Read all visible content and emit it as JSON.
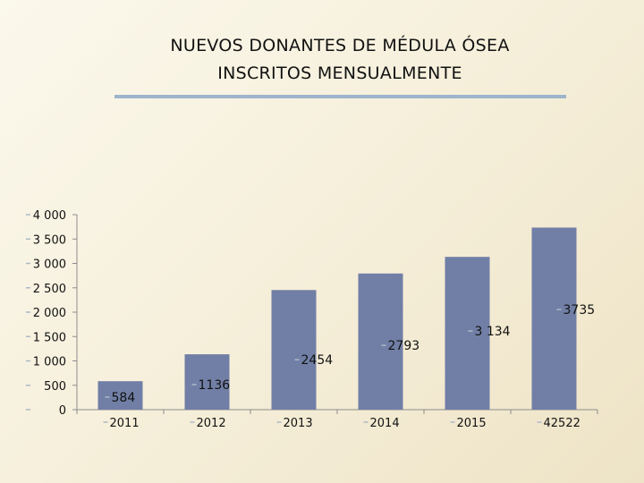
{
  "title": {
    "line1": "NUEVOS DONANTES  DE  MÉDULA  ÓSEA",
    "line2": "INSCRITOS MENSUALMENTE"
  },
  "colors": {
    "bar": "#717fa6",
    "rule": "#9db4cc",
    "axis": "#8c8c8c",
    "marker": "#aeb9c8"
  },
  "chart_data": {
    "type": "bar",
    "title": "NUEVOS DONANTES  DE  MÉDULA  ÓSEA INSCRITOS MENSUALMENTE",
    "xlabel": "",
    "ylabel": "",
    "categories": [
      "2011",
      "2012",
      "2013",
      "2014",
      "2015",
      "42522"
    ],
    "values": [
      584,
      1136,
      2454,
      2793,
      3134,
      3735
    ],
    "data_labels": [
      "584",
      "1136",
      "2454",
      "2793",
      "3 134",
      "3735"
    ],
    "ylim": [
      0,
      4000
    ],
    "y_ticks": [
      0,
      500,
      1000,
      1500,
      2000,
      2500,
      3000,
      3500,
      4000
    ],
    "y_tick_labels": [
      "0",
      "500",
      "1 000",
      "1 500",
      "2 000",
      "2 500",
      "3 000",
      "3 500",
      "4 000"
    ],
    "grid": false,
    "legend": "none"
  }
}
